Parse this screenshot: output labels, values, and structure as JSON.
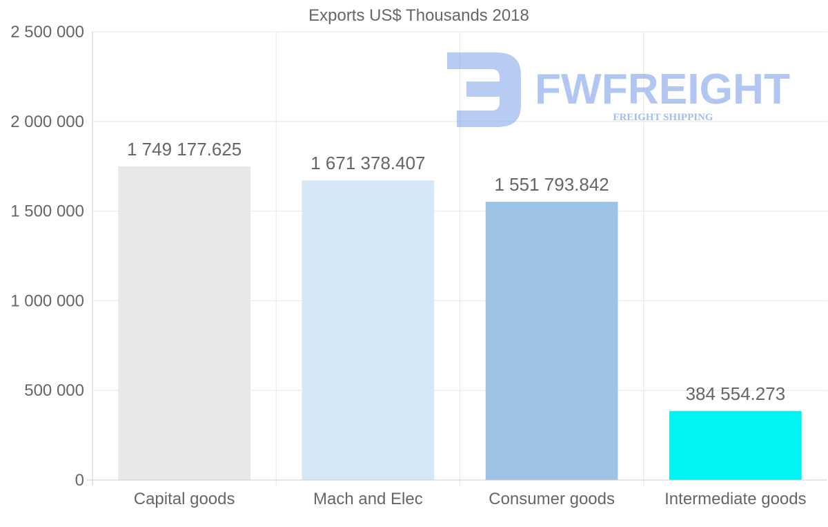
{
  "chart_data": {
    "type": "bar",
    "title": "Exports US$ Thousands 2018",
    "categories": [
      "Capital goods",
      "Mach and Elec",
      "Consumer goods",
      "Intermediate goods"
    ],
    "values": [
      1749177.625,
      1671378.407,
      1551793.842,
      384554.273
    ],
    "value_labels": [
      "1 749 177.625",
      "1 671 378.407",
      "1 551 793.842",
      "384 554.273"
    ],
    "bar_colors": [
      "#e8e8e8",
      "#d6e7f8",
      "#9dc3e6",
      "#00f4f4"
    ],
    "ylim": [
      0,
      2500000
    ],
    "yticks": [
      0,
      500000,
      1000000,
      1500000,
      2000000,
      2500000
    ],
    "ytick_labels": [
      "0",
      "500 000",
      "1 000 000",
      "1 500 000",
      "2 000 000",
      "2 500 000"
    ],
    "xlabel": "",
    "ylabel": "",
    "grid": true,
    "legend": "none"
  },
  "watermark": {
    "brand": "FWFREIGHT",
    "tagline": "FREIGHT SHIPPING",
    "color": "#7ea3ea"
  },
  "colors": {
    "text": "#666666",
    "grid": "#e6e6e6",
    "axis": "#cccccc"
  }
}
